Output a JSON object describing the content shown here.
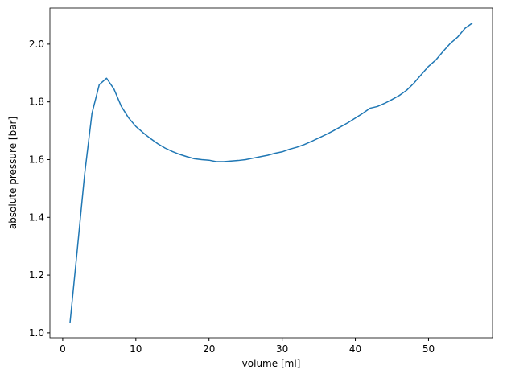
{
  "chart_data": {
    "type": "line",
    "xlabel": "volume [ml]",
    "ylabel": "absolute pressure [bar]",
    "x": [
      1,
      2,
      3,
      4,
      5,
      6,
      7,
      8,
      9,
      10,
      11,
      12,
      13,
      14,
      15,
      16,
      17,
      18,
      19,
      20,
      21,
      22,
      23,
      24,
      25,
      26,
      27,
      28,
      29,
      30,
      31,
      32,
      33,
      34,
      35,
      36,
      37,
      38,
      39,
      40,
      41,
      42,
      43,
      44,
      45,
      46,
      47,
      48,
      49,
      50,
      51,
      52,
      53,
      54,
      55,
      56
    ],
    "values": [
      1.035,
      1.29,
      1.55,
      1.76,
      1.86,
      1.882,
      1.845,
      1.785,
      1.745,
      1.715,
      1.693,
      1.673,
      1.655,
      1.64,
      1.628,
      1.618,
      1.61,
      1.603,
      1.6,
      1.598,
      1.593,
      1.593,
      1.595,
      1.597,
      1.6,
      1.605,
      1.61,
      1.615,
      1.622,
      1.627,
      1.636,
      1.643,
      1.652,
      1.663,
      1.675,
      1.687,
      1.7,
      1.714,
      1.728,
      1.744,
      1.76,
      1.778,
      1.784,
      1.795,
      1.808,
      1.822,
      1.84,
      1.865,
      1.894,
      1.923,
      1.945,
      1.975,
      2.003,
      2.025,
      2.055,
      2.073
    ],
    "color": "#1f77b4",
    "xlim": [
      -1.75,
      58.75
    ],
    "xticks": [
      0,
      10,
      20,
      30,
      40,
      50
    ],
    "ylim": [
      0.983,
      2.125
    ],
    "yticks": [
      {
        "value": 1,
        "label": "1.0"
      },
      {
        "value": 1.2,
        "label": "1.2"
      },
      {
        "value": 1.4,
        "label": "1.4"
      },
      {
        "value": 1.6,
        "label": "1.6"
      },
      {
        "value": 1.8,
        "label": "1.8"
      },
      {
        "value": 2,
        "label": "2.0"
      }
    ]
  }
}
